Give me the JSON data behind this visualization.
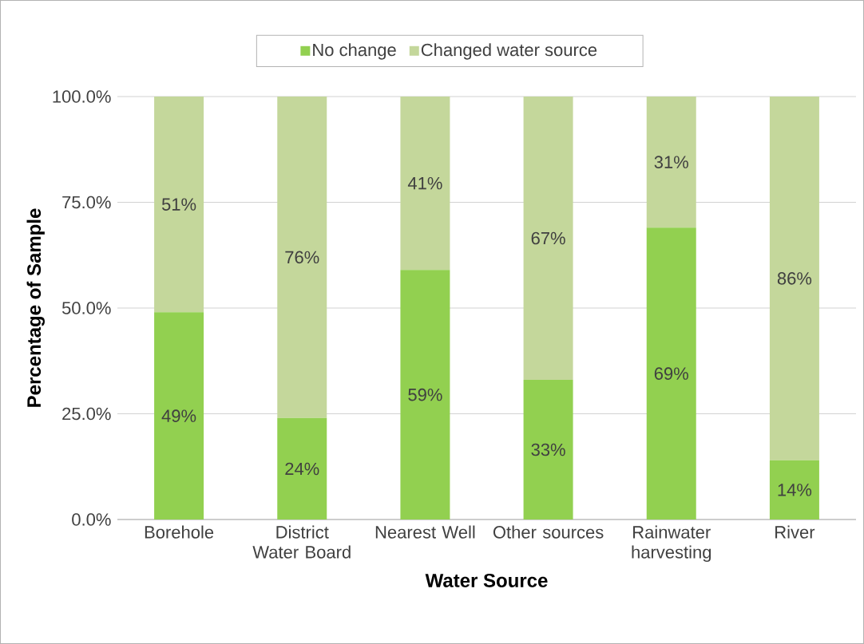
{
  "chart_data": {
    "type": "bar",
    "stacked": true,
    "xlabel": "Water Source",
    "ylabel": "Percentage of Sample",
    "categories": [
      "Borehole",
      "District Water Board",
      "Nearest Well",
      "Other sources",
      "Rainwater harvesting",
      "River"
    ],
    "series": [
      {
        "name": "No change",
        "color": "#92d050",
        "values": [
          49,
          24,
          59,
          33,
          69,
          14
        ],
        "value_labels": [
          "49%",
          "24%",
          "59%",
          "33%",
          "69%",
          "14%"
        ]
      },
      {
        "name": "Changed water source",
        "color": "#c4d79b",
        "values": [
          51,
          76,
          41,
          67,
          31,
          86
        ],
        "value_labels": [
          "51%",
          "76%",
          "41%",
          "67%",
          "31%",
          "86%"
        ]
      }
    ],
    "ylim": [
      0,
      100
    ],
    "yticks": [
      {
        "value": 0,
        "label": "0.0%"
      },
      {
        "value": 25,
        "label": "25.0%"
      },
      {
        "value": 50,
        "label": "50.0%"
      },
      {
        "value": 75,
        "label": "75.0%"
      },
      {
        "value": 100,
        "label": "100.0%"
      }
    ],
    "grid": "y",
    "legend": "top"
  }
}
